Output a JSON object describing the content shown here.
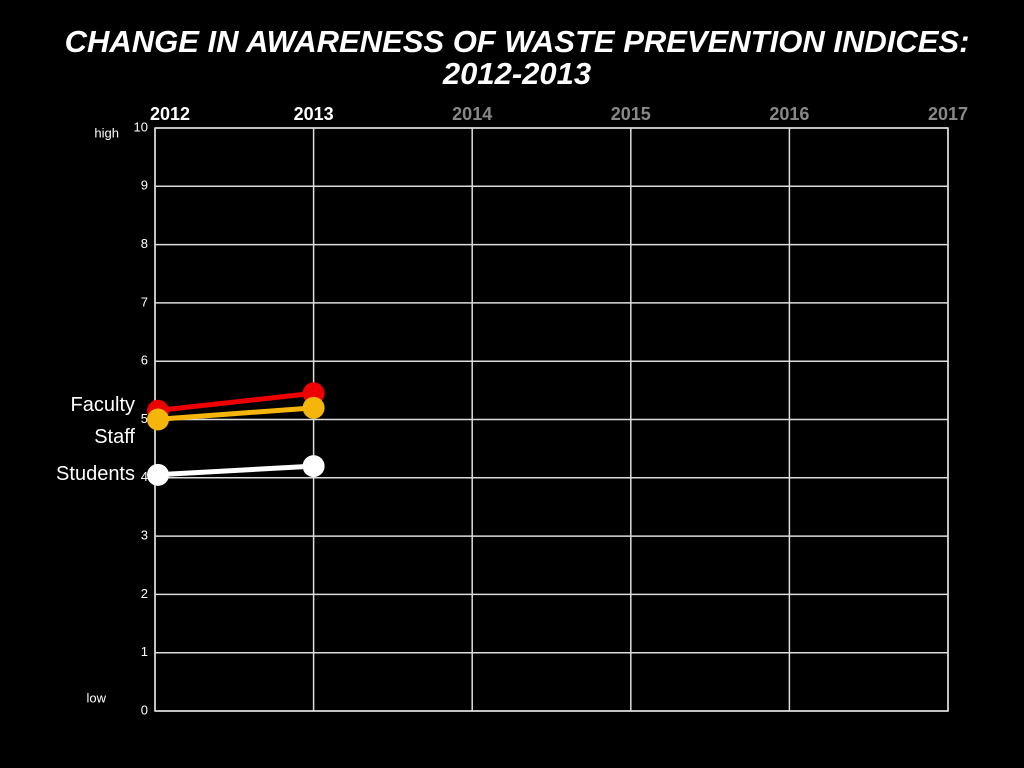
{
  "chart_data": {
    "type": "line",
    "title": "CHANGE IN AWARENESS OF WASTE PREVENTION INDICES: 2012-2013",
    "x": [
      2012,
      2013
    ],
    "series": [
      {
        "name": "Faculty",
        "color": "#ee0000",
        "values": [
          5.15,
          5.45
        ]
      },
      {
        "name": "Staff",
        "color": "#f5b50a",
        "values": [
          5.0,
          5.2
        ]
      },
      {
        "name": "Students",
        "color": "#ffffff",
        "values": [
          4.05,
          4.2
        ]
      }
    ],
    "xlim": [
      2012,
      2017
    ],
    "xticks": [
      2012,
      2013,
      2014,
      2015,
      2016,
      2017
    ],
    "ylim": [
      0,
      10
    ],
    "yticks": [
      0,
      1,
      2,
      3,
      4,
      5,
      6,
      7,
      8,
      9,
      10
    ],
    "annotations": [
      "high",
      "low"
    ],
    "grid": true
  }
}
